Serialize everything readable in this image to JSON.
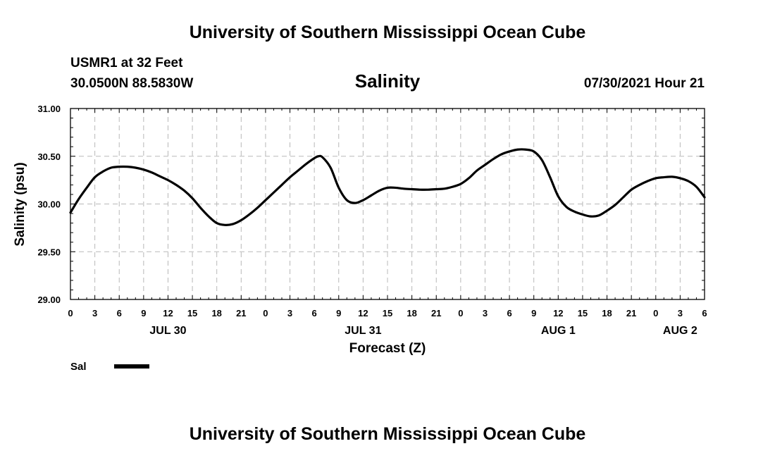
{
  "header": {
    "title": "University of Southern Mississippi Ocean Cube",
    "station": "USMR1 at 32 Feet",
    "coordinates": "30.0500N  88.5830W",
    "variable": "Salinity",
    "timestamp": "07/30/2021 Hour 21"
  },
  "footer": {
    "title": "University of Southern Mississippi Ocean Cube"
  },
  "chart_data": {
    "type": "line",
    "title": "Salinity",
    "xlabel": "Forecast (Z)",
    "ylabel": "Salinity (psu)",
    "xlim": [
      0,
      78
    ],
    "ylim": [
      29.0,
      31.0
    ],
    "grid": true,
    "legend_position": "bottom-left",
    "x_ticks": [
      0,
      3,
      6,
      9,
      12,
      15,
      18,
      21,
      24,
      27,
      30,
      33,
      36,
      39,
      42,
      45,
      48,
      51,
      54,
      57,
      60,
      63,
      66,
      69,
      72,
      75,
      78
    ],
    "x_tick_labels": [
      "0",
      "3",
      "6",
      "9",
      "12",
      "15",
      "18",
      "21",
      "0",
      "3",
      "6",
      "9",
      "12",
      "15",
      "18",
      "21",
      "0",
      "3",
      "6",
      "9",
      "12",
      "15",
      "18",
      "21",
      "0",
      "3",
      "6"
    ],
    "y_ticks": [
      29.0,
      29.5,
      30.0,
      30.5,
      31.0
    ],
    "y_tick_labels": [
      "29.00",
      "29.50",
      "30.00",
      "30.50",
      "31.00"
    ],
    "date_labels": [
      {
        "x": 12,
        "label": "JUL 30"
      },
      {
        "x": 36,
        "label": "JUL 31"
      },
      {
        "x": 60,
        "label": "AUG 1"
      },
      {
        "x": 75,
        "label": "AUG 2"
      }
    ],
    "series": [
      {
        "name": "Sal",
        "color": "#000000",
        "x": [
          0,
          1,
          2,
          3,
          4,
          5,
          6,
          7,
          8,
          9,
          10,
          11,
          12,
          13,
          14,
          15,
          16,
          17,
          18,
          19,
          20,
          21,
          22,
          23,
          24,
          25,
          26,
          27,
          28,
          29,
          30,
          30.5,
          31,
          32,
          33,
          34,
          35,
          36,
          37,
          38,
          39,
          40,
          41,
          42,
          43,
          44,
          45,
          46,
          47,
          48,
          49,
          50,
          51,
          52,
          53,
          54,
          55,
          56,
          57,
          58,
          59,
          60,
          61,
          62,
          63,
          64,
          65,
          66,
          67,
          68,
          69,
          70,
          71,
          72,
          73,
          74,
          75,
          76,
          77,
          78
        ],
        "values": [
          29.91,
          30.05,
          30.17,
          30.28,
          30.34,
          30.38,
          30.39,
          30.39,
          30.38,
          30.36,
          30.33,
          30.29,
          30.25,
          30.2,
          30.14,
          30.06,
          29.96,
          29.87,
          29.8,
          29.78,
          29.79,
          29.83,
          29.89,
          29.96,
          30.04,
          30.12,
          30.2,
          30.28,
          30.35,
          30.42,
          30.48,
          30.5,
          30.49,
          30.38,
          30.17,
          30.04,
          30.01,
          30.04,
          30.09,
          30.14,
          30.17,
          30.17,
          30.16,
          30.155,
          30.15,
          30.15,
          30.155,
          30.16,
          30.18,
          30.21,
          30.27,
          30.35,
          30.41,
          30.47,
          30.52,
          30.55,
          30.57,
          30.57,
          30.55,
          30.46,
          30.28,
          30.08,
          29.97,
          29.92,
          29.89,
          29.87,
          29.88,
          29.93,
          29.99,
          30.07,
          30.15,
          30.2,
          30.24,
          30.27,
          30.28,
          30.285,
          30.27,
          30.24,
          30.18,
          30.07
        ]
      }
    ]
  }
}
